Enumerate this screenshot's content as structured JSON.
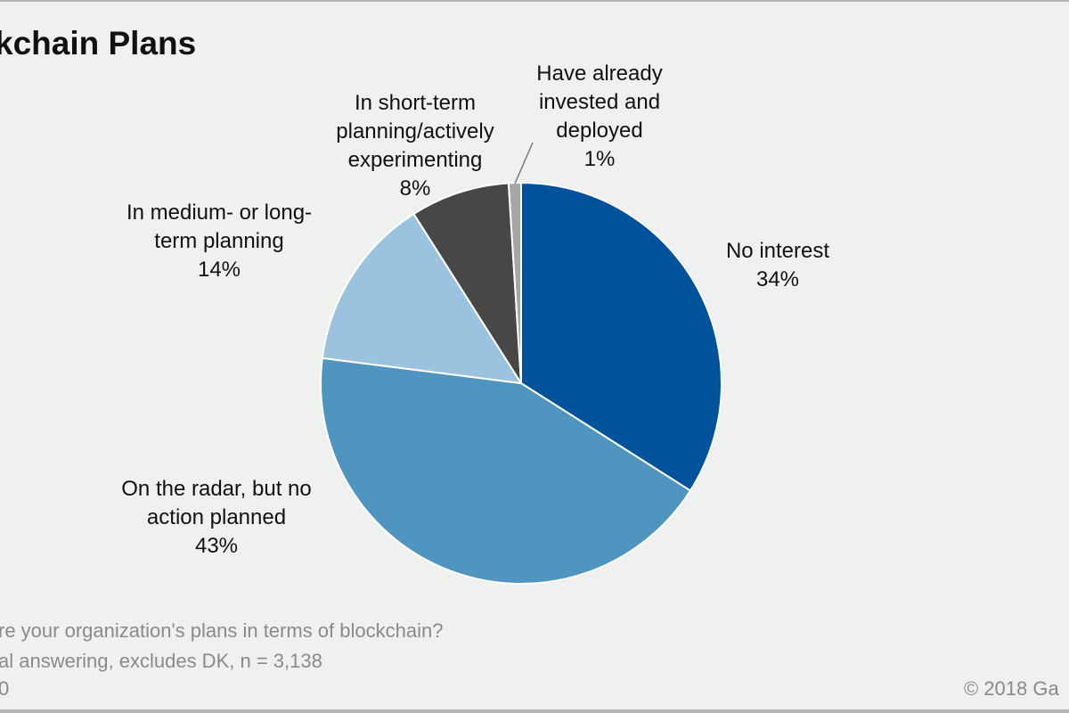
{
  "chart_data": {
    "type": "pie",
    "title": "kchain Plans",
    "start_angle_deg": 0,
    "direction": "clockwise",
    "slices": [
      {
        "label_lines": [
          "No interest"
        ],
        "value": 34,
        "value_label": "34%",
        "color": "#00539b"
      },
      {
        "label_lines": [
          "On the radar,  but no",
          "action planned"
        ],
        "value": 43,
        "value_label": "43%",
        "color": "#4f95c0"
      },
      {
        "label_lines": [
          "In medium- or long-",
          "term planning"
        ],
        "value": 14,
        "value_label": "14%",
        "color": "#9bc2de"
      },
      {
        "label_lines": [
          "In short-term",
          "planning/actively",
          "experimenting"
        ],
        "value": 8,
        "value_label": "8%",
        "color": "#474747"
      },
      {
        "label_lines": [
          "Have already",
          "invested and",
          "deployed"
        ],
        "value": 1,
        "value_label": "1%",
        "color": "#a6a6a6"
      }
    ]
  },
  "footnotes": [
    "re your organization's plans in terms of blockchain?",
    "al  answering,  excludes  DK, n = 3,138",
    "0"
  ],
  "copyright": "© 2018 Ga"
}
